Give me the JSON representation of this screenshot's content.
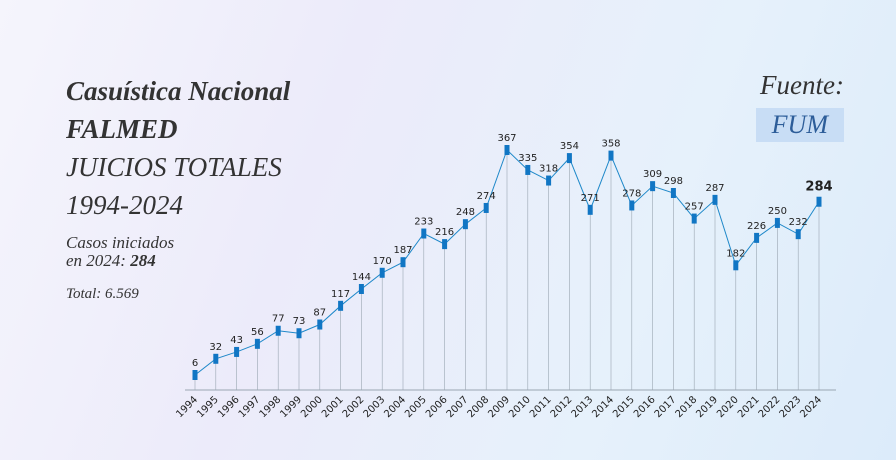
{
  "title": {
    "line1": "Casuística Nacional",
    "line2": "FALMED",
    "line3": "JUICIOS TOTALES",
    "line4": "1994-2024"
  },
  "cases": {
    "label_a": "Casos iniciados",
    "label_b": "en 2024:",
    "value": "284"
  },
  "total": "Total: 6.569",
  "source": {
    "label": "Fuente:",
    "name": "FUM"
  },
  "colors": {
    "line": "#1e88c9",
    "marker": "#1176c4",
    "drop": "#9aa6b2",
    "badge": "#c8ddf5"
  },
  "chart_data": {
    "type": "line",
    "x": [
      "1994",
      "1995",
      "1996",
      "1997",
      "1998",
      "1999",
      "2000",
      "2001",
      "2002",
      "2003",
      "2004",
      "2005",
      "2006",
      "2007",
      "2008",
      "2009",
      "2010",
      "2011",
      "2012",
      "2013",
      "2014",
      "2015",
      "2016",
      "2017",
      "2018",
      "2019",
      "2020",
      "2021",
      "2022",
      "2023",
      "2024"
    ],
    "values": [
      6,
      32,
      43,
      56,
      77,
      73,
      87,
      117,
      144,
      170,
      187,
      233,
      216,
      248,
      274,
      367,
      335,
      318,
      354,
      271,
      358,
      278,
      309,
      298,
      257,
      287,
      182,
      226,
      250,
      232,
      284
    ],
    "ylim": [
      0,
      400
    ],
    "highlight_last": true,
    "grid": false
  }
}
